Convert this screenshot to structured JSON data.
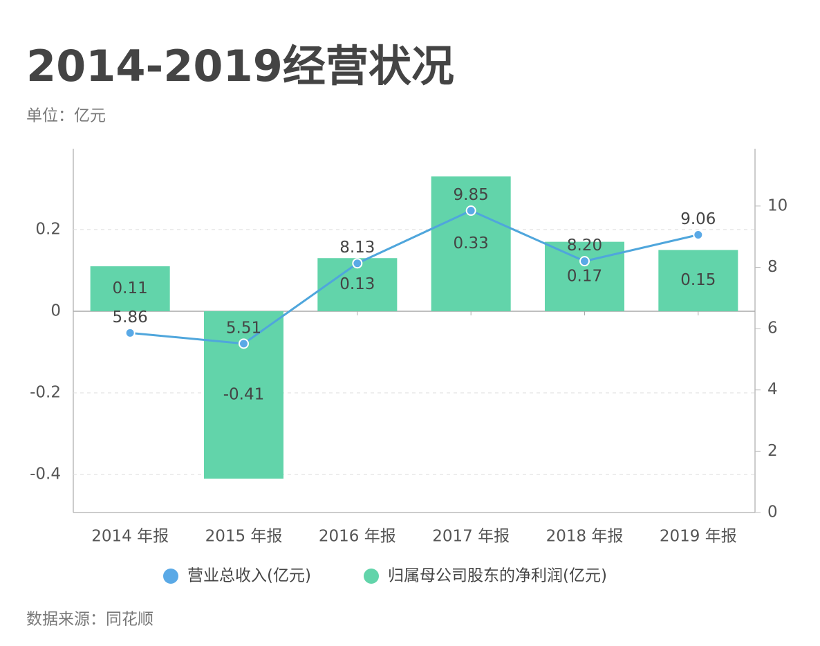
{
  "chart_data": {
    "type": "bar",
    "title": "2014-2019经营状况",
    "subtitle": "单位：亿元",
    "source": "数据来源：同花顺",
    "categories": [
      "2014 年报",
      "2015 年报",
      "2016 年报",
      "2017 年报",
      "2018 年报",
      "2019 年报"
    ],
    "series": [
      {
        "name": "营业总收入(亿元)",
        "type": "line",
        "axis": "y2",
        "color": "#4fa6dc",
        "values": [
          5.86,
          5.51,
          8.13,
          9.85,
          8.2,
          9.06
        ],
        "value_labels": [
          "5.86",
          "5.51",
          "8.13",
          "9.85",
          "8.20",
          "9.06"
        ]
      },
      {
        "name": "归属母公司股东的净利润(亿元)",
        "type": "bar",
        "color": "#62d4aa",
        "values": [
          0.11,
          -0.41,
          0.13,
          0.33,
          0.17,
          0.15
        ]
      }
    ],
    "ylim": [
      -0.493,
      0.398
    ],
    "yticks": [
      -0.4,
      -0.2,
      0,
      0.2
    ],
    "y2lim": [
      0,
      11.87
    ],
    "y2ticks": [
      0,
      2,
      4,
      6,
      8,
      10
    ],
    "grid": true
  }
}
